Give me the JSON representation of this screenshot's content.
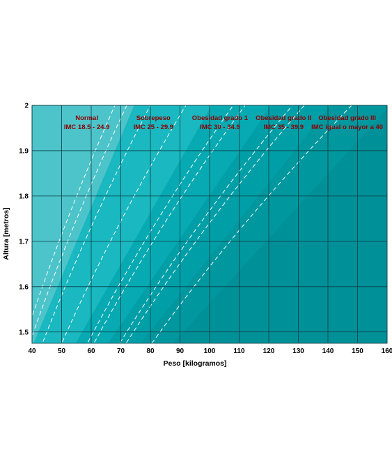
{
  "chart_data": {
    "type": "area",
    "xlabel": "Peso [kilogramos]",
    "ylabel": "Altura [metros]",
    "xlim": [
      40,
      160
    ],
    "ylim": [
      1.475,
      2.0
    ],
    "xticks": [
      40,
      50,
      60,
      70,
      80,
      90,
      100,
      110,
      120,
      130,
      140,
      150,
      160
    ],
    "yticks": [
      1.5,
      1.6,
      1.7,
      1.8,
      1.9,
      2
    ],
    "ytick_labels": [
      "1.5",
      "1.6",
      "1.7",
      "1.8",
      "1.9",
      "2"
    ],
    "grid": true,
    "bmi_boundaries": [
      18.5,
      25,
      30,
      35,
      40
    ],
    "bmi_dashed_lines": [
      17,
      18,
      20,
      23,
      27,
      28,
      32,
      33,
      37
    ],
    "categories": [
      {
        "name": "Normal",
        "range": "IMC  18.5 - 24.9",
        "bmi_min": 18.5,
        "bmi_max": 24.9,
        "label_x": 58.5
      },
      {
        "name": "Sobrepeso",
        "range": "IMC 25 - 29.9",
        "bmi_min": 25,
        "bmi_max": 29.9,
        "label_x": 81
      },
      {
        "name": "Obesidad grado 1",
        "range": "IMC 30 - 34.9",
        "bmi_min": 30,
        "bmi_max": 34.9,
        "label_x": 103.5
      },
      {
        "name": "Obesidad grado II",
        "range": "IMC 35 - 39.9",
        "bmi_min": 35,
        "bmi_max": 39.9,
        "label_x": 125
      },
      {
        "name": "Obesidad grado III",
        "range": "IMC igual o mayor a 40",
        "bmi_min": 40,
        "bmi_max": null,
        "label_x": 146.5
      }
    ],
    "colors": {
      "underweight": "#4dc4ca",
      "normal": "#1ab8c0",
      "overweight": "#07aab2",
      "obese1": "#009fa7",
      "obese2": "#00979e",
      "obese3": "#009098",
      "grid": "#0b3b44",
      "dashed": "#ffffff",
      "label": "#8b0000"
    }
  }
}
